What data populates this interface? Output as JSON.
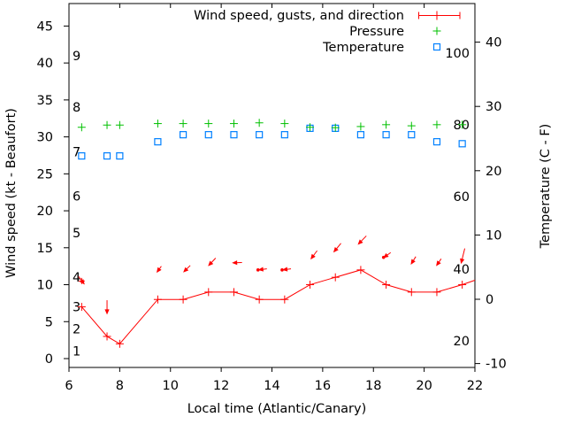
{
  "colors": {
    "wind": "#ff0000",
    "pressure": "#00c000",
    "temperature": "#0080ff",
    "axis": "#000000",
    "background": "#ffffff"
  },
  "legend": {
    "items": [
      {
        "label": "Wind speed, gusts, and direction",
        "symbol": "errorbar",
        "color": "#ff0000"
      },
      {
        "label": "Pressure",
        "symbol": "plus",
        "color": "#00c000"
      },
      {
        "label": "Temperature",
        "symbol": "open-square",
        "color": "#0080ff"
      }
    ]
  },
  "axes": {
    "x": {
      "label": "Local time (Atlantic/Canary)",
      "min": 6,
      "max": 22,
      "ticks": [
        6,
        8,
        10,
        12,
        14,
        16,
        18,
        20,
        22
      ]
    },
    "y_left": {
      "label": "Wind speed (kt - Beaufort)",
      "min": 0,
      "max": 45,
      "ticks": [
        0,
        5,
        10,
        15,
        20,
        25,
        30,
        35,
        40,
        45
      ]
    },
    "y_left_inner_beaufort": [
      {
        "label": "1",
        "kt": 1
      },
      {
        "label": "2",
        "kt": 4
      },
      {
        "label": "3",
        "kt": 7
      },
      {
        "label": "4",
        "kt": 11
      },
      {
        "label": "5",
        "kt": 17
      },
      {
        "label": "6",
        "kt": 22
      },
      {
        "label": "7",
        "kt": 28
      },
      {
        "label": "8",
        "kt": 34
      },
      {
        "label": "9",
        "kt": 41
      }
    ],
    "y_right": {
      "label": "Temperature (C - F)",
      "ticks": [
        -10,
        0,
        10,
        20,
        30,
        40
      ]
    },
    "y_right_inner_scale": [
      {
        "label": "100",
        "kt": 41.33
      },
      {
        "label": "80",
        "kt": 31.6
      },
      {
        "label": "60",
        "kt": 21.9
      },
      {
        "label": "40",
        "kt": 12.1
      },
      {
        "label": "20",
        "kt": 2.4
      }
    ]
  },
  "chart_data": {
    "type": "line",
    "title": "Wind speed, gusts, and direction; Pressure; Temperature",
    "xlabel": "Local time (Atlantic/Canary)",
    "ylabel_left": "Wind speed (kt - Beaufort)",
    "ylabel_right": "Temperature (C - F)",
    "x_range": [
      6,
      22
    ],
    "y_left_range": [
      0,
      45
    ],
    "y_right_range_c": [
      -10,
      40
    ],
    "grid": false,
    "legend_position": "top-right-inside",
    "x": [
      6.5,
      7.5,
      8,
      9.5,
      10.5,
      11.5,
      12.5,
      13.5,
      14.5,
      15.5,
      16.5,
      17.5,
      18.5,
      19.5,
      20.5,
      21.5
    ],
    "series": [
      {
        "name": "Wind speed (kt)",
        "marker": "plus",
        "color": "#ff0000",
        "values": [
          7,
          3,
          2,
          8,
          8,
          9,
          9,
          8,
          8,
          10,
          11,
          12,
          10,
          9,
          9,
          10
        ],
        "line_end": [
          22,
          10.6
        ]
      },
      {
        "name": "Wind gusts (kt)",
        "marker": "plus-small",
        "color": "#ff0000",
        "points": [
          [
            6.5,
            10.5
          ]
        ],
        "dots": [
          [
            13.45,
            12.0
          ],
          [
            14.4,
            12.0
          ],
          [
            18.4,
            13.7
          ]
        ]
      },
      {
        "name": "Wind direction arrows",
        "color": "#ff0000",
        "arrows": [
          [
            6.38,
            11.1,
            6.62,
            10.0
          ],
          [
            7.5,
            7.9,
            7.5,
            5.95
          ],
          [
            9.64,
            12.5,
            9.45,
            11.6
          ],
          [
            10.78,
            12.6,
            10.5,
            11.65
          ],
          [
            11.78,
            13.6,
            11.48,
            12.5
          ],
          [
            12.82,
            13.0,
            12.42,
            12.95
          ],
          [
            13.8,
            12.15,
            13.45,
            12.0
          ],
          [
            14.75,
            12.15,
            14.4,
            12.0
          ],
          [
            15.78,
            14.6,
            15.52,
            13.4
          ],
          [
            16.72,
            15.6,
            16.42,
            14.35
          ],
          [
            17.72,
            16.6,
            17.38,
            15.4
          ],
          [
            18.68,
            14.35,
            18.38,
            13.6
          ],
          [
            19.67,
            13.8,
            19.47,
            12.7
          ],
          [
            20.67,
            13.5,
            20.47,
            12.5
          ],
          [
            21.6,
            14.9,
            21.45,
            12.8
          ]
        ]
      },
      {
        "name": "Pressure",
        "marker": "plus",
        "color": "#00c000",
        "values_left_axis_units": [
          31.3,
          31.6,
          31.6,
          31.8,
          31.8,
          31.8,
          31.8,
          31.9,
          31.8,
          31.3,
          31.25,
          31.4,
          31.65,
          31.5,
          31.65,
          31.65
        ],
        "values_inner_scale": [
          79.4,
          80.0,
          80.0,
          80.4,
          80.4,
          80.4,
          80.4,
          80.6,
          80.4,
          79.4,
          79.3,
          79.6,
          80.1,
          79.8,
          80.1,
          80.1
        ]
      },
      {
        "name": "Temperature (C)",
        "marker": "open-square",
        "color": "#0080ff",
        "axis": "right",
        "values_c": [
          22.3,
          22.3,
          22.3,
          24.5,
          25.6,
          25.6,
          25.6,
          25.6,
          25.6,
          26.6,
          26.6,
          25.6,
          25.6,
          25.6,
          24.5,
          24.2
        ]
      }
    ]
  }
}
